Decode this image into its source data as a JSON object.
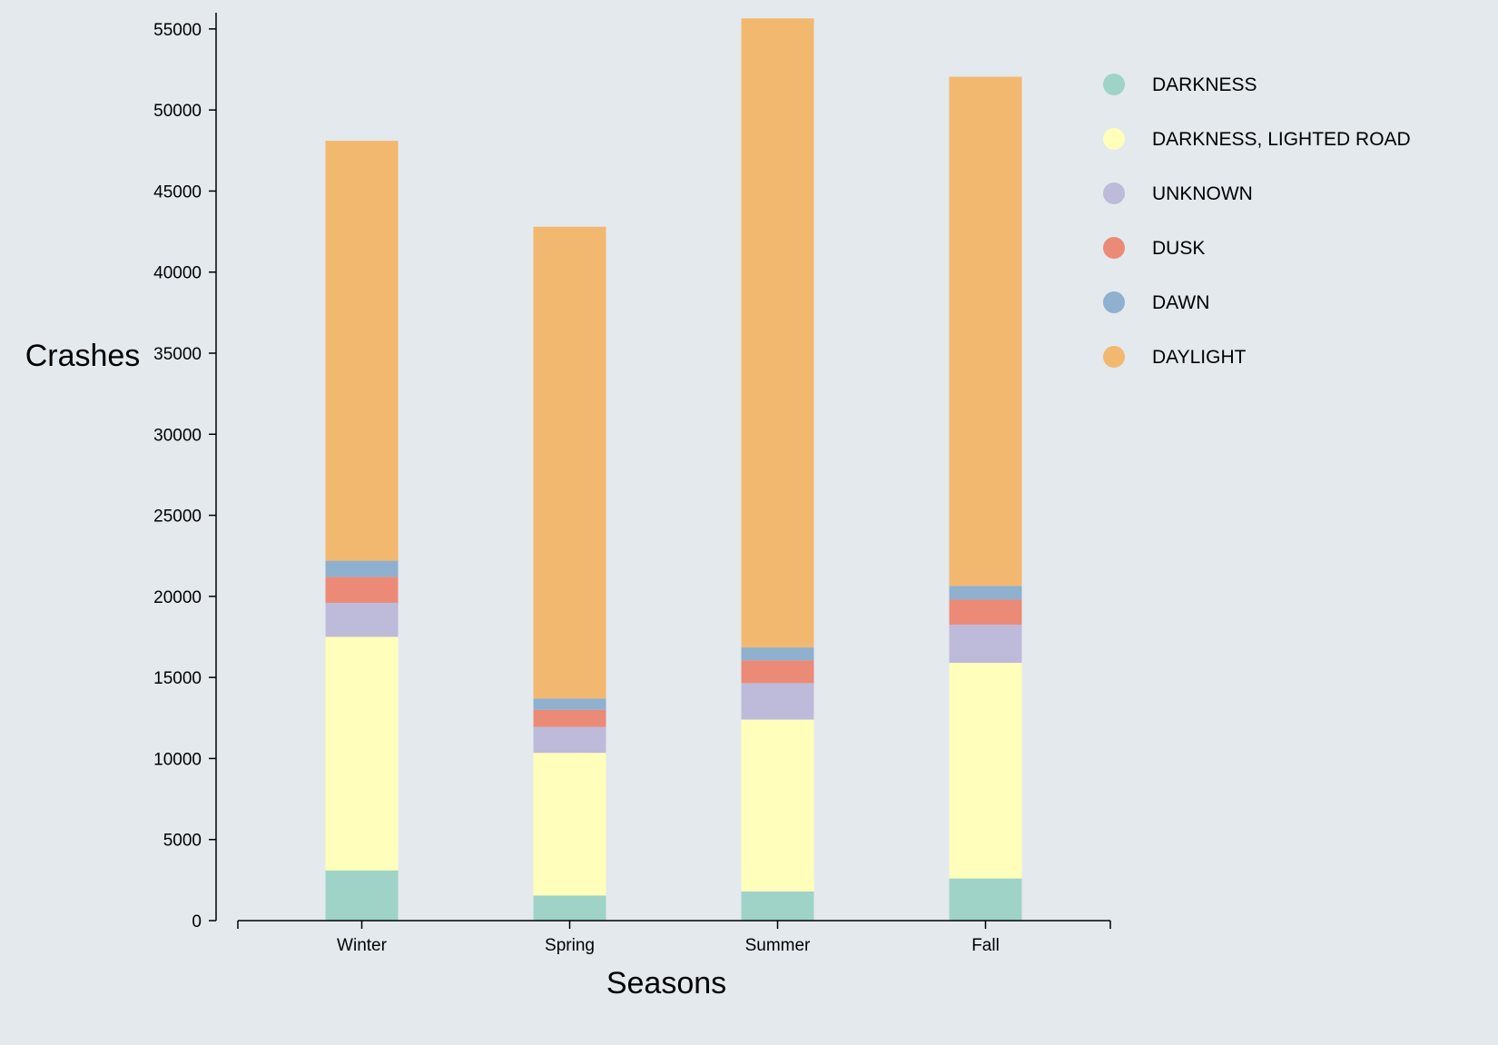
{
  "chart_data": {
    "type": "bar",
    "stacked": true,
    "xlabel": "Seasons",
    "ylabel": "Crashes",
    "ylim": [
      0,
      56000
    ],
    "yticks": [
      0,
      5000,
      10000,
      15000,
      20000,
      25000,
      30000,
      35000,
      40000,
      45000,
      50000,
      55000
    ],
    "categories": [
      "Winter",
      "Spring",
      "Summer",
      "Fall"
    ],
    "legend_position": "top-right",
    "series": [
      {
        "name": "DARKNESS",
        "color": "#9fd3c7",
        "values": [
          3100,
          1550,
          1800,
          2600
        ]
      },
      {
        "name": "DARKNESS, LIGHTED ROAD",
        "color": "#ffffbb",
        "values": [
          14400,
          8800,
          10600,
          13300
        ]
      },
      {
        "name": "UNKNOWN",
        "color": "#bebada",
        "values": [
          2100,
          1600,
          2250,
          2350
        ]
      },
      {
        "name": "DUSK",
        "color": "#eb8b77",
        "values": [
          1600,
          1050,
          1400,
          1550
        ]
      },
      {
        "name": "DAWN",
        "color": "#8fb0cf",
        "values": [
          1000,
          700,
          800,
          850
        ]
      },
      {
        "name": "DAYLIGHT",
        "color": "#f2b870",
        "values": [
          25900,
          29100,
          38800,
          31400
        ]
      }
    ]
  }
}
